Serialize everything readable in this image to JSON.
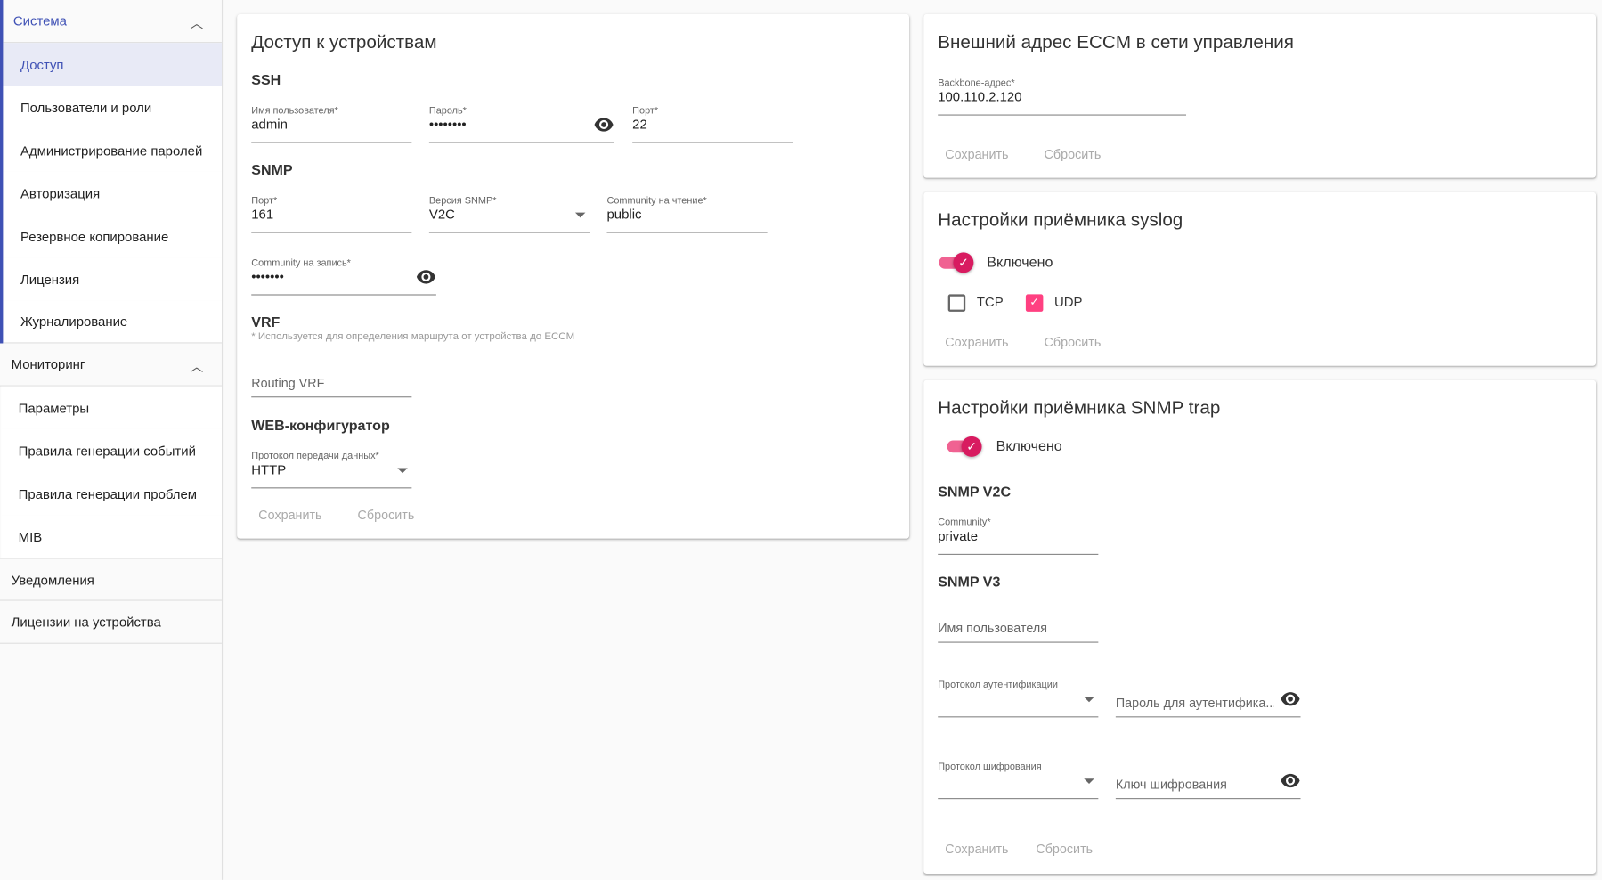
{
  "sidebar": {
    "groups": [
      {
        "label": "Система",
        "expanded": true,
        "items": [
          "Доступ",
          "Пользователи и роли",
          "Администрирование паролей",
          "Авторизация",
          "Резервное копирование",
          "Лицензия",
          "Журналирование"
        ],
        "active": "Доступ"
      },
      {
        "label": "Мониторинг",
        "expanded": true,
        "items": [
          "Параметры",
          "Правила генерации событий",
          "Правила генерации проблем",
          "MIB"
        ]
      },
      {
        "label": "Уведомления"
      },
      {
        "label": "Лицензии на устройства"
      }
    ]
  },
  "access": {
    "title": "Доступ к устройствам",
    "ssh": {
      "title": "SSH",
      "username_label": "Имя пользователя*",
      "username": "admin",
      "password_label": "Пароль*",
      "password": "••••••••",
      "port_label": "Порт*",
      "port": "22"
    },
    "snmp": {
      "title": "SNMP",
      "port_label": "Порт*",
      "port": "161",
      "version_label": "Версия SNMP*",
      "version": "V2C",
      "read_label": "Community на чтение*",
      "read": "public",
      "write_label": "Community на запись*",
      "write": "•••••••"
    },
    "vrf": {
      "title": "VRF",
      "note": "* Используется для определения маршрута от устройства до ECCM",
      "placeholder": "Routing VRF"
    },
    "web": {
      "title": "WEB-конфигуратор",
      "protocol_label": "Протокол передачи данных*",
      "protocol": "HTTP"
    },
    "save": "Сохранить",
    "reset": "Сбросить"
  },
  "eccm": {
    "title": "Внешний адрес ECCM в сети управления",
    "backbone_label": "Backbone-адрес*",
    "backbone": "100.110.2.120",
    "save": "Сохранить",
    "reset": "Сбросить"
  },
  "syslog": {
    "title": "Настройки приёмника syslog",
    "enabled_label": "Включено",
    "enabled": true,
    "tcp_label": "TCP",
    "tcp": false,
    "udp_label": "UDP",
    "udp": true,
    "save": "Сохранить",
    "reset": "Сбросить"
  },
  "trap": {
    "title": "Настройки приёмника SNMP trap",
    "enabled_label": "Включено",
    "enabled": true,
    "v2c_title": "SNMP V2C",
    "community_label": "Community*",
    "community": "private",
    "v3_title": "SNMP V3",
    "user_placeholder": "Имя пользователя",
    "auth_proto_label": "Протокол аутентификации",
    "auth_pass_placeholder": "Пароль для аутентифика...",
    "priv_proto_label": "Протокол шифрования",
    "priv_key_placeholder": "Ключ шифрования",
    "save": "Сохранить",
    "reset": "Сбросить"
  },
  "colors": {
    "accent": "#3f51b5",
    "toggle": "#d81b60",
    "checkbox": "#ff4081"
  }
}
